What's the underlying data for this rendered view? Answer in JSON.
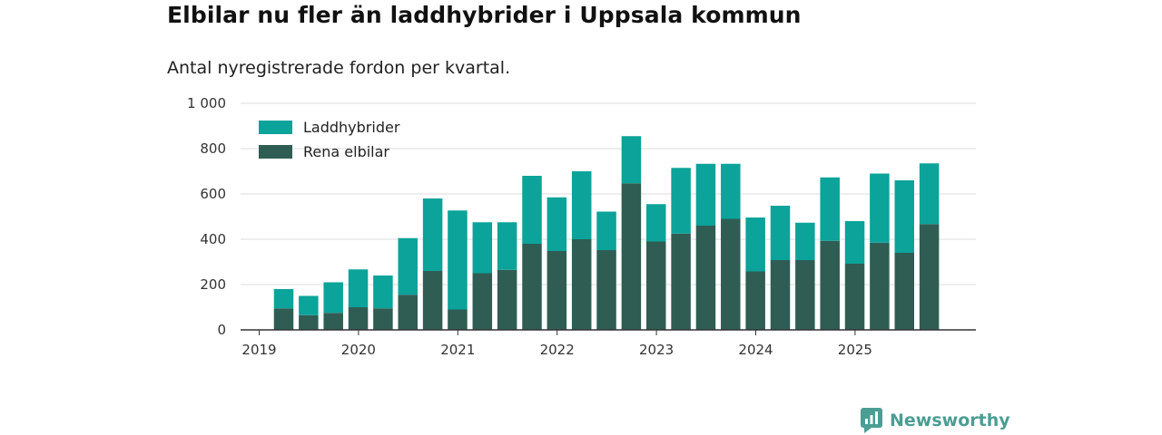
{
  "title": "Elbilar nu fler än laddhybrider i Uppsala kommun",
  "subtitle": "Antal nyregistrerade fordon per kvartal.",
  "brand": {
    "name": "Newsworthy",
    "color": "#4a9e94",
    "icon": "newsworthy-logo-icon"
  },
  "colors": {
    "laddhybrider": "#0ba39a",
    "elbilar": "#2f5d54",
    "grid": "#dddddd",
    "axis": "#333333"
  },
  "chart_data": {
    "type": "bar",
    "stacked": true,
    "title": "Elbilar nu fler än laddhybrider i Uppsala kommun",
    "subtitle": "Antal nyregistrerade fordon per kvartal.",
    "xlabel": "",
    "ylabel": "",
    "ylim": [
      0,
      1000
    ],
    "yticks": [
      0,
      200,
      400,
      600,
      800,
      1000
    ],
    "ytick_labels": [
      "0",
      "200",
      "400",
      "600",
      "800",
      "1 000"
    ],
    "grid": true,
    "legend_position": "top-left",
    "categories": [
      "2019 Q2",
      "2019 Q3",
      "2019 Q4",
      "2020 Q1",
      "2020 Q2",
      "2020 Q3",
      "2020 Q4",
      "2021 Q1",
      "2021 Q2",
      "2021 Q3",
      "2021 Q4",
      "2022 Q1",
      "2022 Q2",
      "2022 Q3",
      "2022 Q4",
      "2023 Q1",
      "2023 Q2",
      "2023 Q3",
      "2023 Q4",
      "2024 Q1",
      "2024 Q2",
      "2024 Q3",
      "2024 Q4",
      "2025 Q1",
      "2025 Q2",
      "2025 Q3",
      "2025 Q4"
    ],
    "x_labels": [
      "2019",
      "2020",
      "2021",
      "2022",
      "2023",
      "2024",
      "2025"
    ],
    "series": [
      {
        "name": "Rena elbilar",
        "values": [
          95,
          65,
          75,
          100,
          95,
          155,
          260,
          90,
          250,
          265,
          380,
          348,
          400,
          352,
          647,
          390,
          425,
          460,
          490,
          258,
          308,
          308,
          393,
          292,
          385,
          340,
          467
        ]
      },
      {
        "name": "Laddhybrider",
        "values": [
          85,
          85,
          135,
          167,
          145,
          250,
          320,
          437,
          225,
          210,
          300,
          237,
          300,
          170,
          208,
          165,
          290,
          273,
          243,
          238,
          240,
          165,
          280,
          188,
          305,
          320,
          268
        ]
      }
    ]
  }
}
